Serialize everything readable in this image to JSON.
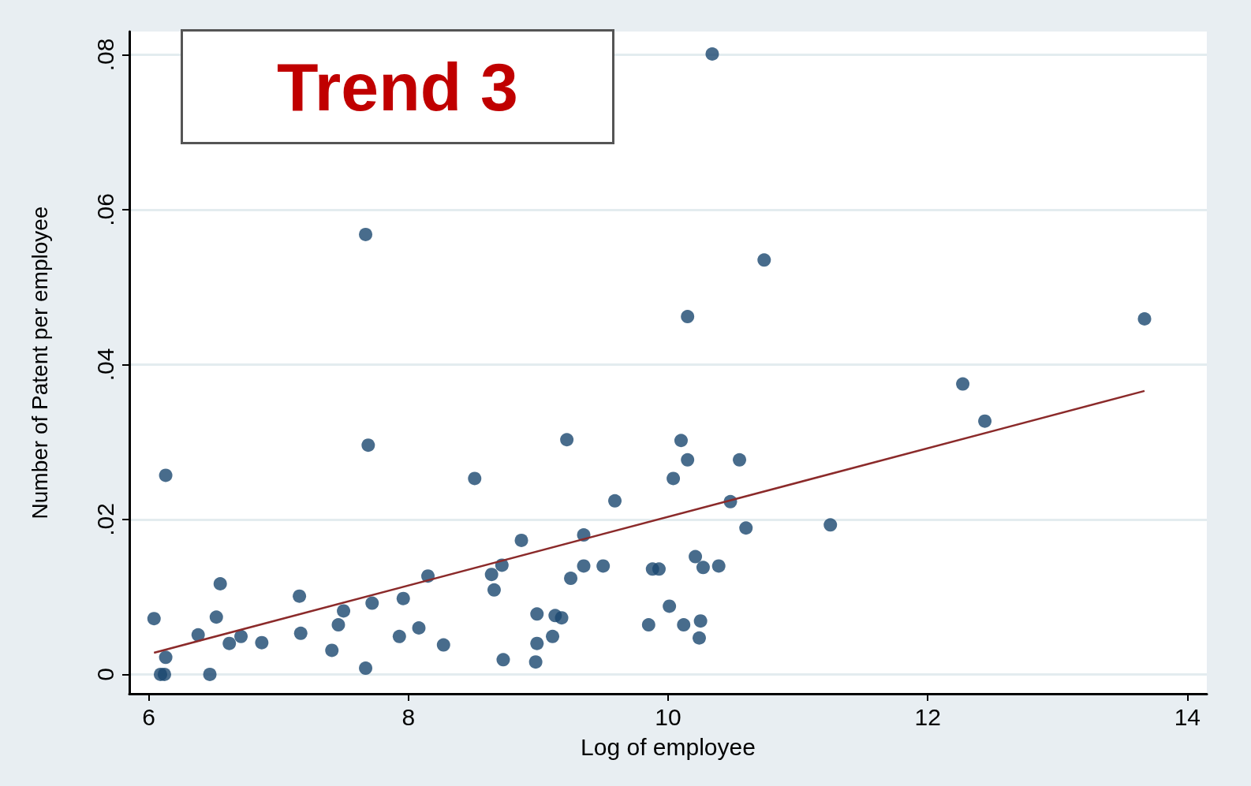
{
  "chart_data": {
    "type": "scatter",
    "xlabel": "Log of employee",
    "ylabel": "Number of Patent per employee",
    "annotations": [
      "Trend 3"
    ],
    "xlim": [
      5.85,
      14.15
    ],
    "xticks": [
      6,
      8,
      10,
      12,
      14
    ],
    "ylim": [
      -0.0025,
      0.083
    ],
    "yticks": [
      0,
      {
        "value": 0.02,
        "label": ".02"
      },
      {
        "value": 0.04,
        "label": ".04"
      },
      {
        "value": 0.06,
        "label": ".06"
      },
      {
        "value": 0.08,
        "label": ".08"
      }
    ],
    "grid": "y",
    "series": [
      {
        "color": "#1a476f",
        "marker": "circle",
        "x": [
          6.04,
          6.13,
          6.13,
          6.09,
          6.12,
          6.38,
          6.47,
          6.52,
          6.55,
          6.62,
          6.71,
          6.87,
          7.16,
          7.17,
          7.41,
          7.46,
          7.5,
          7.67,
          7.67,
          7.69,
          7.72,
          7.93,
          7.96,
          8.08,
          8.15,
          8.27,
          8.51,
          8.64,
          8.66,
          8.72,
          8.73,
          8.87,
          8.98,
          8.99,
          8.99,
          9.11,
          9.13,
          9.18,
          9.22,
          9.25,
          9.35,
          9.35,
          9.5,
          9.59,
          9.85,
          9.88,
          9.93,
          10.01,
          10.04,
          10.1,
          10.12,
          10.15,
          10.15,
          10.21,
          10.24,
          10.25,
          10.27,
          10.34,
          10.39,
          10.48,
          10.55,
          10.6,
          10.74,
          11.25,
          12.27,
          12.44,
          13.67
        ],
        "values": [
          0.0072,
          0.0257,
          0.0022,
          0,
          0,
          0.0051,
          0,
          0.0074,
          0.0117,
          0.004,
          0.0049,
          0.0041,
          0.0101,
          0.0053,
          0.0031,
          0.0064,
          0.0082,
          0.0568,
          0.0008,
          0.0296,
          0.0092,
          0.0049,
          0.0098,
          0.006,
          0.0127,
          0.0038,
          0.0253,
          0.0129,
          0.0109,
          0.0141,
          0.0019,
          0.0173,
          0.0016,
          0.0078,
          0.004,
          0.0049,
          0.0076,
          0.0073,
          0.0303,
          0.0124,
          0.018,
          0.014,
          0.014,
          0.0224,
          0.0064,
          0.0136,
          0.0136,
          0.0088,
          0.0253,
          0.0302,
          0.0064,
          0.0277,
          0.0462,
          0.0152,
          0.0047,
          0.0069,
          0.0138,
          0.0801,
          0.014,
          0.0223,
          0.0277,
          0.0189,
          0.0535,
          0.0193,
          0.0375,
          0.0327,
          0.0459
        ]
      },
      {
        "type": "line",
        "color": "#8b2a2a",
        "marker": "none",
        "line_style": "solid",
        "x": [
          6.04,
          13.67
        ],
        "values": [
          0.0028,
          0.0366
        ]
      }
    ]
  }
}
